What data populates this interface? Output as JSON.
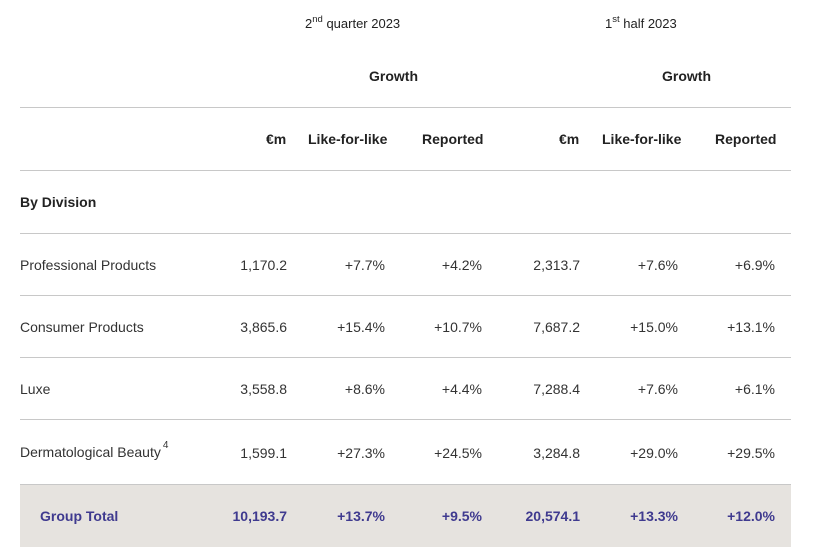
{
  "header": {
    "q2": {
      "sup": "nd",
      "prefix": "2",
      "text": "quarter 2023"
    },
    "h1": {
      "sup": "st",
      "prefix": "1",
      "text": "half 2023"
    },
    "growth_q2": "Growth",
    "growth_h1": "Growth"
  },
  "columns": [
    "€m",
    "Like-for-like",
    "Reported",
    "€m",
    "Like-for-like",
    "Reported"
  ],
  "section_label": "By Division",
  "rows": [
    {
      "label": "Professional Products",
      "footnote": "",
      "values": [
        "1,170.2",
        "+7.7%",
        "+4.2%",
        "2,313.7",
        "+7.6%",
        "+6.9%"
      ]
    },
    {
      "label": "Consumer Products",
      "footnote": "",
      "values": [
        "3,865.6",
        "+15.4%",
        "+10.7%",
        "7,687.2",
        "+15.0%",
        "+13.1%"
      ]
    },
    {
      "label": "Luxe",
      "footnote": "",
      "values": [
        "3,558.8",
        "+8.6%",
        "+4.4%",
        "7,288.4",
        "+7.6%",
        "+6.1%"
      ]
    },
    {
      "label": "Dermatological Beauty",
      "footnote": "4",
      "values": [
        "1,599.1",
        "+27.3%",
        "+24.5%",
        "3,284.8",
        "+29.0%",
        "+29.5%"
      ]
    }
  ],
  "total": {
    "label": "Group Total",
    "values": [
      "10,193.7",
      "+13.7%",
      "+9.5%",
      "20,574.1",
      "+13.3%",
      "+12.0%"
    ]
  },
  "colors": {
    "total_text": "#3f3a8f",
    "total_band": "#e6e3df",
    "rule": "#c8c8c8"
  }
}
